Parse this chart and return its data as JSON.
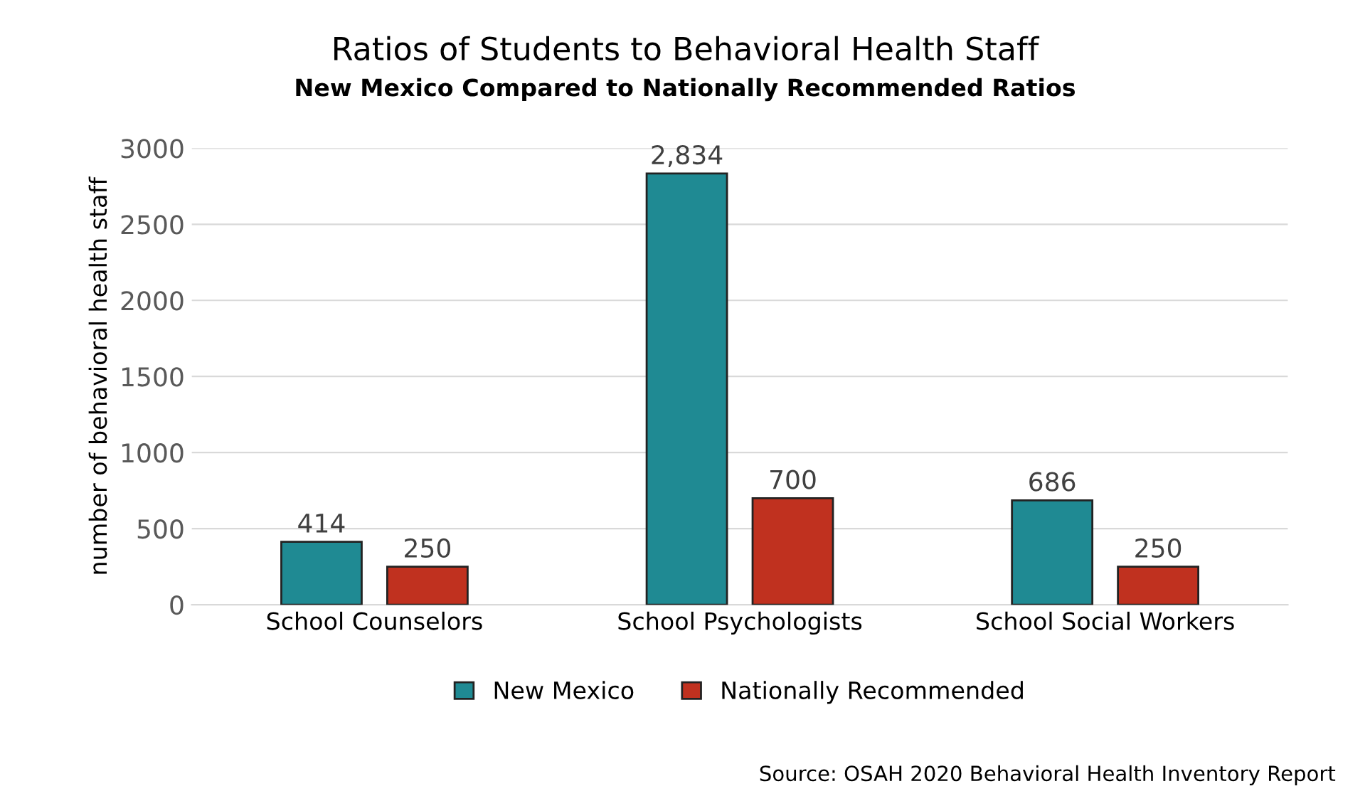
{
  "chart_data": {
    "type": "bar",
    "title": "Ratios of Students to Behavioral Health Staff",
    "subtitle": "New Mexico Compared to Nationally Recommended Ratios",
    "ylabel": "number of behavioral health staff",
    "categories": [
      "School Counselors",
      "School Psychologists",
      "School Social Workers"
    ],
    "series": [
      {
        "name": "New Mexico",
        "color": "#1f8a93",
        "values": [
          414,
          2834,
          686
        ],
        "value_labels": [
          "414",
          "2,834",
          "686"
        ]
      },
      {
        "name": "Nationally Recommended",
        "color": "#c0311f",
        "values": [
          250,
          700,
          250
        ],
        "value_labels": [
          "250",
          "700",
          "250"
        ]
      }
    ],
    "ylim": [
      0,
      3000
    ],
    "yticks": [
      0,
      500,
      1000,
      1500,
      2000,
      2500,
      3000
    ],
    "grid": "y",
    "legend": "bottom",
    "annotations": [
      "Source: OSAH 2020 Behavioral Health Inventory Report"
    ]
  }
}
